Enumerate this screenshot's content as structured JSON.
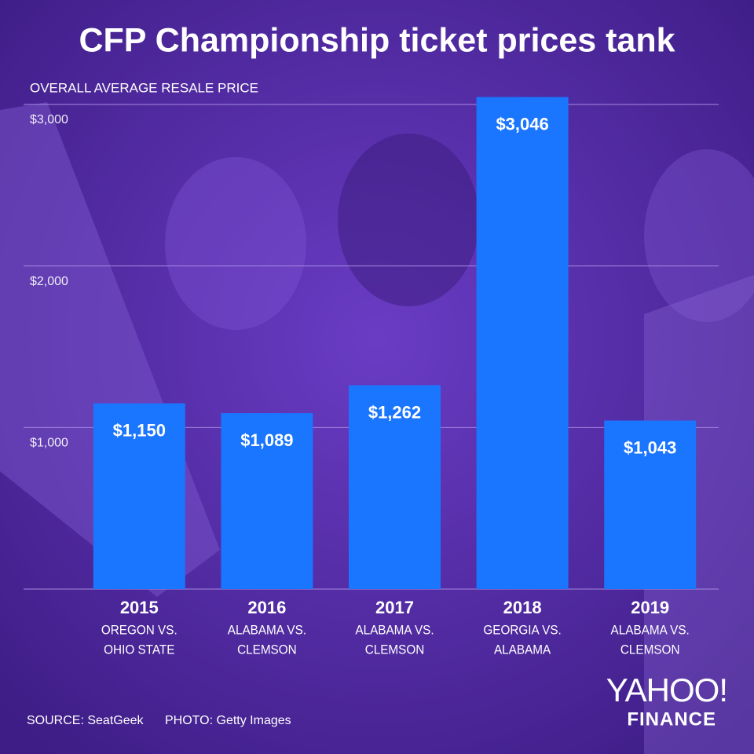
{
  "chart_data": {
    "type": "bar",
    "title": "CFP Championship ticket prices tank",
    "subtitle": "OVERALL AVERAGE RESALE PRICE",
    "categories": [
      "2015",
      "2016",
      "2017",
      "2018",
      "2019"
    ],
    "matchups": [
      [
        "OREGON VS.",
        "OHIO STATE"
      ],
      [
        "ALABAMA VS.",
        "CLEMSON"
      ],
      [
        "ALABAMA VS.",
        "CLEMSON"
      ],
      [
        "GEORGIA VS.",
        "ALABAMA"
      ],
      [
        "ALABAMA VS.",
        "CLEMSON"
      ]
    ],
    "values": [
      1150,
      1089,
      1262,
      3046,
      1043
    ],
    "value_labels": [
      "$1,150",
      "$1,089",
      "$1,262",
      "$3,046",
      "$1,043"
    ],
    "color": "#1a75ff",
    "ylim": [
      0,
      3000
    ],
    "yticks": [
      {
        "value": 1000,
        "label": "$1,000"
      },
      {
        "value": 2000,
        "label": "$2,000"
      },
      {
        "value": 3000,
        "label": "$3,000"
      }
    ],
    "grid": true,
    "source": "SOURCE: SeatGeek",
    "photo_credit": "PHOTO: Getty Images",
    "logo": [
      "YAHOO!",
      "FINANCE"
    ]
  }
}
